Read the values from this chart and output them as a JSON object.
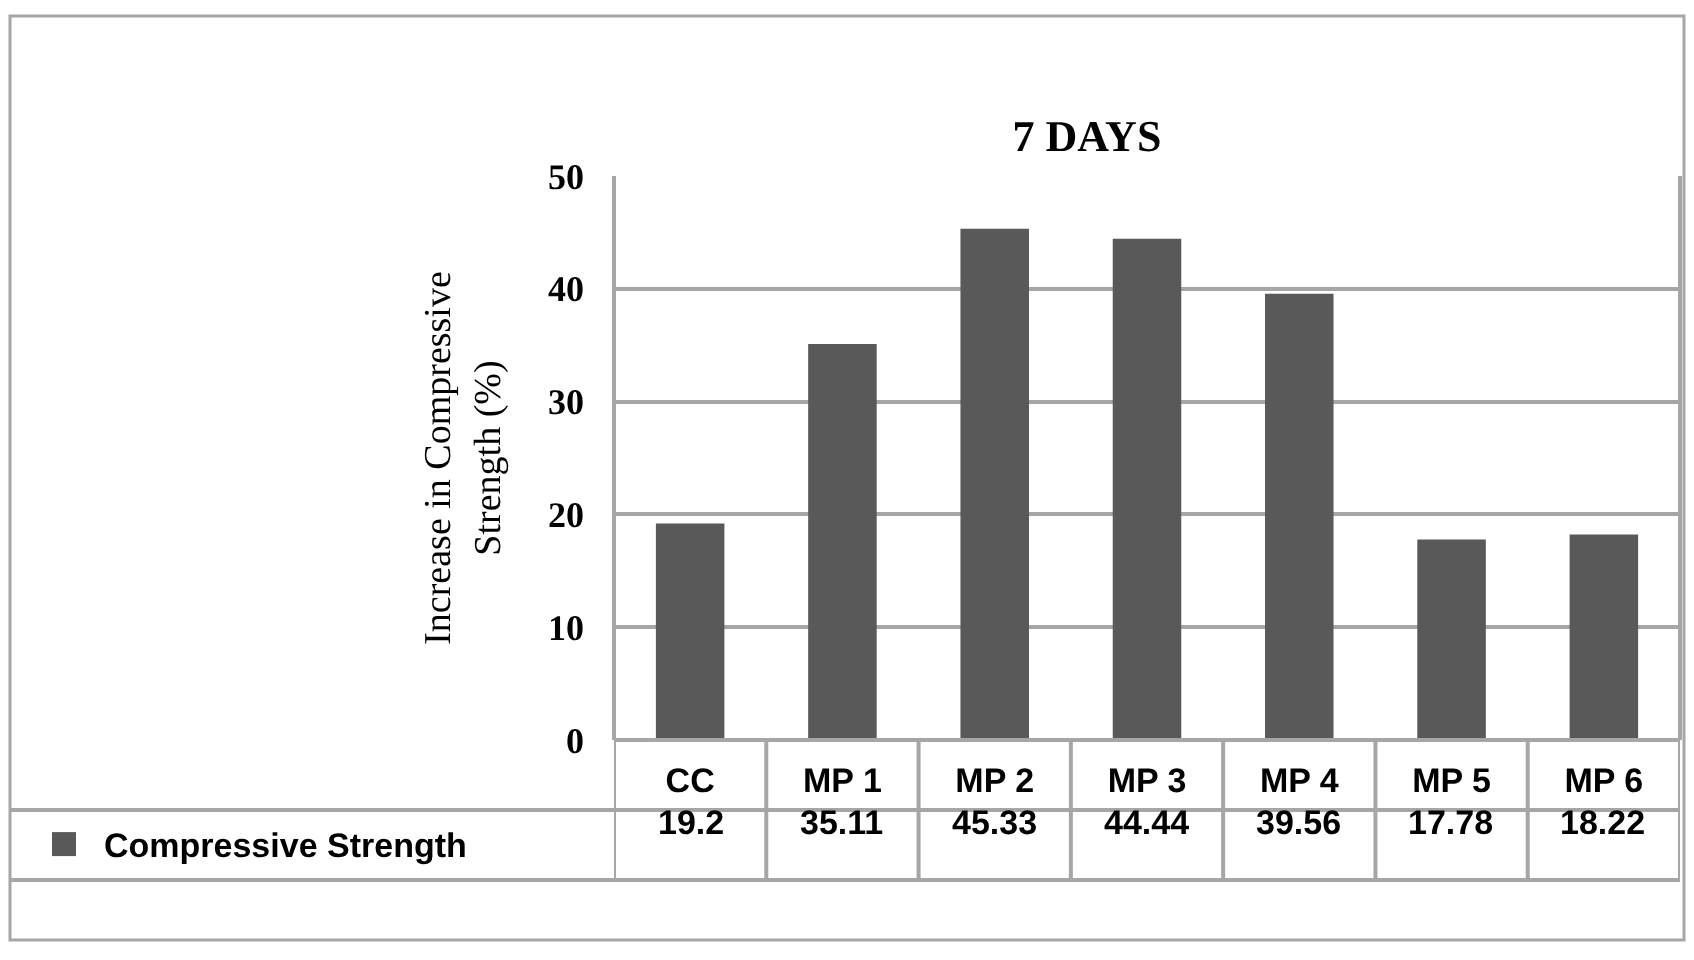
{
  "chart_data": {
    "type": "bar",
    "title": "7 DAYS",
    "ylabel": "Increase in Compressive Strength (%)",
    "categories": [
      "CC",
      "MP 1",
      "MP 2",
      "MP 3",
      "MP 4",
      "MP 5",
      "MP 6"
    ],
    "series": [
      {
        "name": "Compressive Strength",
        "color": "#595959",
        "values": [
          19.2,
          35.11,
          45.33,
          44.44,
          39.56,
          17.78,
          18.22
        ]
      }
    ],
    "ylim": [
      0,
      50
    ],
    "yticks": [
      0,
      10,
      20,
      30,
      40,
      50
    ],
    "grid": "y",
    "legend": "bottom left",
    "data_labels": true
  }
}
